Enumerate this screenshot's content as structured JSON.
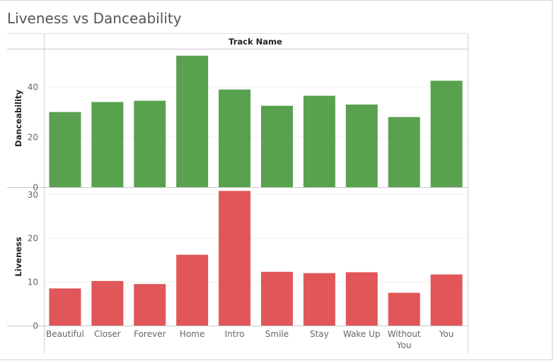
{
  "page": {
    "title": "Liveness vs Danceability"
  },
  "chart_data": {
    "type": "bar",
    "column_header": "Track Name",
    "categories": [
      "Beautiful",
      "Closer",
      "Forever",
      "Home",
      "Intro",
      "Smile",
      "Stay",
      "Wake Up",
      "Without You",
      "You"
    ],
    "panels": [
      {
        "ylabel": "Danceability",
        "color": "#59a14f",
        "ylim": [
          0,
          55
        ],
        "yticks": [
          0,
          20,
          40
        ],
        "values": [
          30.0,
          34.0,
          34.5,
          52.5,
          39.0,
          32.5,
          36.5,
          33.0,
          28.0,
          42.5
        ]
      },
      {
        "ylabel": "Liveness",
        "color": "#e15759",
        "ylim": [
          0,
          31.5
        ],
        "yticks": [
          0,
          10,
          20,
          30
        ],
        "values": [
          8.5,
          10.2,
          9.5,
          16.2,
          30.8,
          12.3,
          12.0,
          12.2,
          7.5,
          11.7
        ]
      }
    ]
  }
}
